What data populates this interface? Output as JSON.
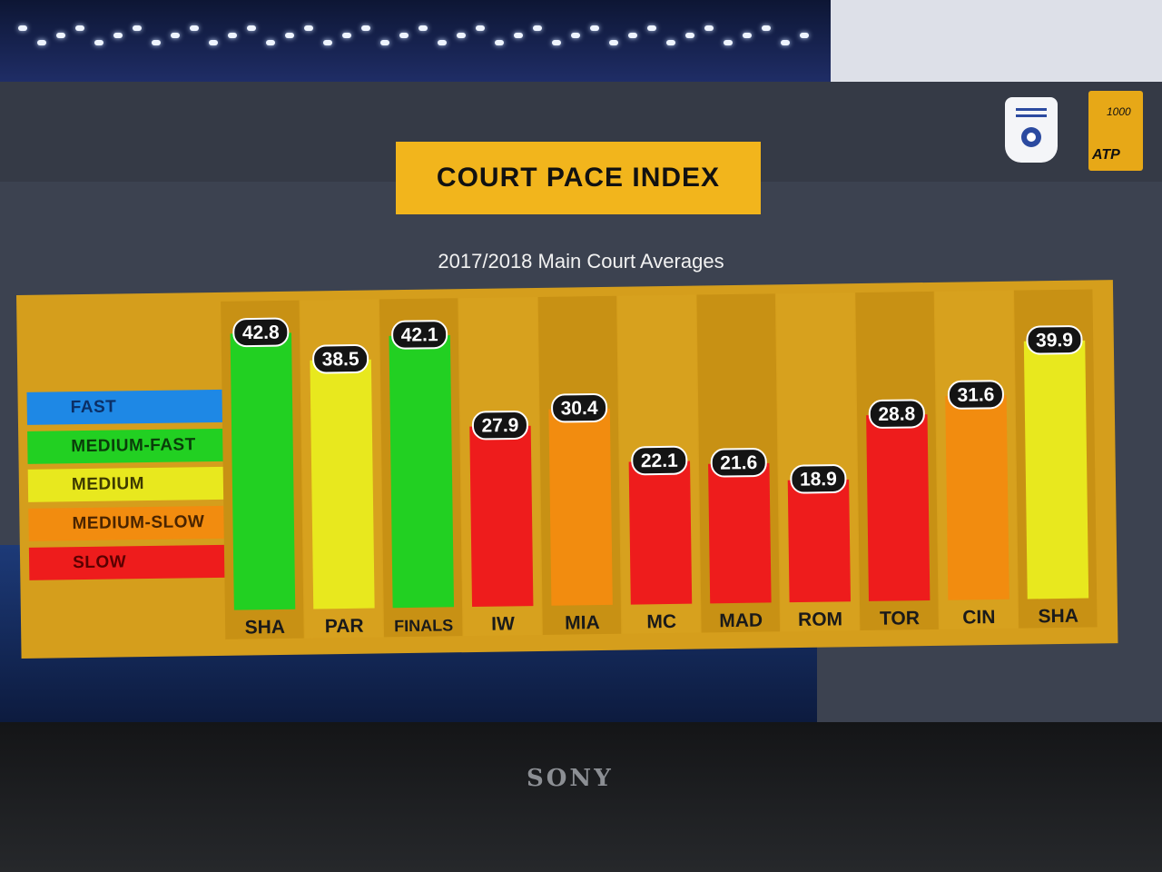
{
  "header": {
    "title": "COURT PACE INDEX",
    "subtitle": "2017/2018 Main Court Averages"
  },
  "logos": {
    "tournament_icon": "rolex-shanghai-masters-logo",
    "tour_icon": "atp-masters-1000-logo",
    "atp_text": "ATP",
    "atp_number": "1000"
  },
  "monitor": {
    "brand": "SONY"
  },
  "legend": [
    {
      "label": "FAST",
      "color": "#1e88e5",
      "text_color": "#0b2f66"
    },
    {
      "label": "MEDIUM-FAST",
      "color": "#22d022",
      "text_color": "#0a3d0a"
    },
    {
      "label": "MEDIUM",
      "color": "#e8e81e",
      "text_color": "#3d3a00"
    },
    {
      "label": "MEDIUM-SLOW",
      "color": "#f28c0f",
      "text_color": "#4a2400"
    },
    {
      "label": "SLOW",
      "color": "#ee1c1c",
      "text_color": "#5a0000"
    }
  ],
  "chart_data": {
    "type": "bar",
    "title": "COURT PACE INDEX",
    "subtitle": "2017/2018 Main Court Averages",
    "categories": [
      "SHA",
      "PAR",
      "FINALS",
      "IW",
      "MIA",
      "MC",
      "MAD",
      "ROM",
      "TOR",
      "CIN",
      "SHA"
    ],
    "values": [
      42.8,
      38.5,
      42.1,
      27.9,
      30.4,
      22.1,
      21.6,
      18.9,
      28.8,
      31.6,
      39.9
    ],
    "value_labels": [
      "42.8",
      "38.5",
      "42.1",
      "27.9",
      "30.4",
      "22.1",
      "21.6",
      "18.9",
      "28.8",
      "31.6",
      "39.9"
    ],
    "speed_class": [
      "MEDIUM-FAST",
      "MEDIUM",
      "MEDIUM-FAST",
      "SLOW",
      "MEDIUM-SLOW",
      "SLOW",
      "SLOW",
      "SLOW",
      "SLOW",
      "MEDIUM-SLOW",
      "MEDIUM"
    ],
    "ylim": [
      0,
      45
    ],
    "grid": false,
    "legend_position": "left"
  }
}
